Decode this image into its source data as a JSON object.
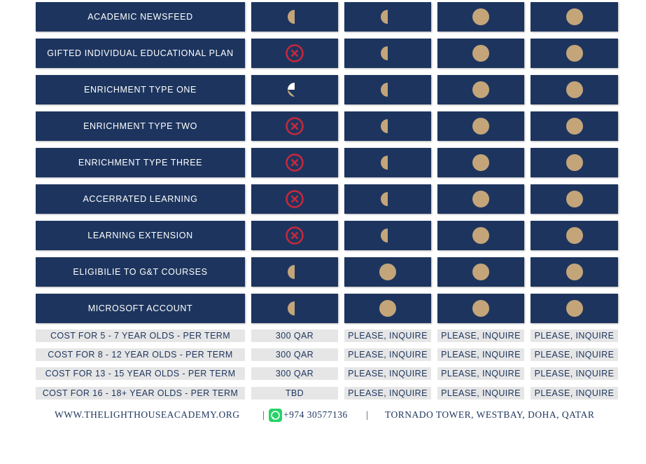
{
  "features": [
    "ACADEMIC NEWSFEED",
    "GIFTED INDIVIDUAL EDUCATIONAL PLAN",
    "ENRICHMENT TYPE ONE",
    "ENRICHMENT TYPE TWO",
    "ENRICHMENT TYPE THREE",
    "ACCERRATED LEARNING",
    "LEARNING EXTENSION",
    "ELIGIBILIE TO G&T COURSES",
    "MICROSOFT ACCOUNT"
  ],
  "costs": [
    [
      "COST FOR 5 - 7 YEAR OLDS - PER TERM",
      "300 QAR",
      "PLEASE, INQUIRE",
      "PLEASE, INQUIRE",
      "PLEASE, INQUIRE"
    ],
    [
      "COST FOR 8 - 12 YEAR OLDS - PER TERM",
      "300 QAR",
      "PLEASE, INQUIRE",
      "PLEASE, INQUIRE",
      "PLEASE, INQUIRE"
    ],
    [
      "COST FOR 13 - 15 YEAR OLDS - PER TERM",
      "300 QAR",
      "PLEASE, INQUIRE",
      "PLEASE, INQUIRE",
      "PLEASE, INQUIRE"
    ],
    [
      "COST FOR 16 - 18+ YEAR OLDS - PER TERM",
      "TBD",
      "PLEASE, INQUIRE",
      "PLEASE, INQUIRE",
      "PLEASE, INQUIRE"
    ]
  ],
  "footer": {
    "website": "WWW.THELIGHTHOUSEACADEMY.ORG",
    "separator": "|",
    "phone": "+974 30577136",
    "address": "TORNADO TOWER, WESTBAY, DOHA, QATAR"
  }
}
